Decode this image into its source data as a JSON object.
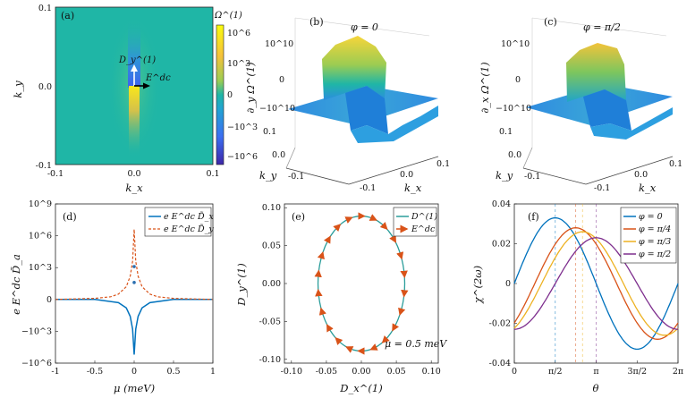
{
  "panels": {
    "a": {
      "label": "(a)",
      "xlabel": "k_x",
      "ylabel": "k_y",
      "colorbar_title": "Ω^(1)",
      "colorbar_ticks": [
        "10^6",
        "10^3",
        "0",
        "−10^3",
        "−10^6"
      ],
      "arrow_labels": [
        "D_y^(1)",
        "E^dc"
      ]
    },
    "b": {
      "label": "(b)",
      "annotation": "φ = 0",
      "zlabel": "∂_y Ω^(1)",
      "zticks": [
        "10^10",
        "0",
        "−10^10"
      ],
      "kyticks": [
        "0.1",
        "0.0",
        "-0.1"
      ],
      "kxticks": [
        "-0.1",
        "0.0",
        "0.1"
      ],
      "xlabel": "k_x",
      "ylabel": "k_y"
    },
    "c": {
      "label": "(c)",
      "annotation": "φ = π/2",
      "zlabel": "∂_x Ω^(1)",
      "zticks": [
        "10^10",
        "0",
        "−10^10"
      ],
      "kyticks": [
        "0.1",
        "0.0",
        "-0.1"
      ],
      "kxticks": [
        "-0.1",
        "0.0",
        "0.1"
      ],
      "xlabel": "k_x",
      "ylabel": "k_y"
    },
    "d": {
      "label": "(d)"
    },
    "e": {
      "label": "(e)",
      "annotation": "μ = 0.5 meV"
    },
    "f": {
      "label": "(f)"
    }
  },
  "colors": {
    "blue": "#0072BD",
    "orange": "#D95319",
    "yellow": "#EDB120",
    "purple": "#7E2F8E",
    "teal": "#2a9d9a"
  },
  "chart_data": [
    {
      "id": "a",
      "type": "heatmap",
      "title": "",
      "x": {
        "label": "k_x",
        "range": [
          -0.1,
          0.1
        ],
        "ticks": [
          -0.1,
          0.0,
          0.1
        ],
        "ticklabels": [
          "-0.1",
          "0.0",
          "0.1"
        ]
      },
      "y": {
        "label": "k_y",
        "range": [
          -0.1,
          0.1
        ],
        "ticks": [
          -0.1,
          0.0,
          0.1
        ],
        "ticklabels": [
          "-0.1",
          "0.0",
          "0.1"
        ]
      },
      "colorbar": {
        "label": "Ω^(1)",
        "scale": "symlog",
        "ticklabels": [
          "10^6",
          "10^3",
          "0",
          "−10^3",
          "−10^6"
        ]
      },
      "description_values": {
        "peak_positive_at": [
          0.0,
          -0.01
        ],
        "peak_negative_at": [
          0.0,
          0.02
        ]
      }
    },
    {
      "id": "d",
      "type": "line",
      "x": {
        "label": "μ (meV)",
        "range": [
          -1,
          1
        ],
        "ticks": [
          -1,
          -0.5,
          0,
          0.5,
          1
        ],
        "ticklabels": [
          "-1",
          "-0.5",
          "0",
          "0.5",
          "1"
        ]
      },
      "y": {
        "label": "e E^dc D̃_a",
        "scale": "symlog",
        "ticks": [
          9,
          6,
          3,
          0,
          -3,
          -6
        ],
        "ticklabels": [
          "10^9",
          "10^6",
          "10^3",
          "0",
          "−10^3",
          "−10^6"
        ]
      },
      "series": [
        {
          "name": "e E^dc D̃_x",
          "style": "solid",
          "color": "#0072BD",
          "x": [
            -1,
            -0.5,
            -0.2,
            -0.1,
            -0.05,
            -0.02,
            0,
            0.02,
            0.05,
            0.1,
            0.2,
            0.5,
            1
          ],
          "y": [
            0,
            0,
            -0.3,
            -0.8,
            -1.6,
            -2.8,
            -5.2,
            -2.8,
            -1.6,
            -0.8,
            -0.3,
            0,
            0
          ]
        },
        {
          "name": "e E^dc D̃_y",
          "style": "dashed",
          "color": "#D95319",
          "x": [
            -1,
            -0.5,
            -0.3,
            -0.2,
            -0.1,
            -0.05,
            -0.02,
            0,
            0.02,
            0.05,
            0.1,
            0.2,
            0.3,
            0.5,
            1
          ],
          "y": [
            0,
            0.1,
            0.25,
            0.5,
            1.2,
            2.2,
            3.6,
            6.6,
            3.6,
            2.2,
            1.2,
            0.5,
            0.25,
            0.1,
            0
          ]
        }
      ],
      "spike_markers": [
        3.1,
        1.6
      ]
    },
    {
      "id": "e",
      "type": "line",
      "x": {
        "label": "D_x^(1)",
        "range": [
          -0.11,
          0.11
        ],
        "ticks": [
          -0.1,
          -0.05,
          0,
          0.05,
          0.1
        ],
        "ticklabels": [
          "-0.10",
          "-0.05",
          "0.00",
          "0.05",
          "0.10"
        ]
      },
      "y": {
        "label": "D_y^(1)",
        "range": [
          -0.105,
          0.105
        ],
        "ticks": [
          -0.1,
          -0.05,
          0,
          0.05,
          0.1
        ],
        "ticklabels": [
          "-0.10",
          "-0.05",
          "0.00",
          "0.05",
          "0.10"
        ]
      },
      "series": [
        {
          "name": "D^(1)",
          "shape": "ellipse",
          "center": [
            0,
            0
          ],
          "semi_axes": [
            0.062,
            0.089
          ],
          "color": "#2a9d9a"
        },
        {
          "name": "E^dc",
          "type": "arrows",
          "count": 22,
          "color": "#D95319"
        }
      ]
    },
    {
      "id": "f",
      "type": "line",
      "x": {
        "label": "θ",
        "range": [
          0,
          6.2832
        ],
        "ticks": [
          0,
          1.5708,
          3.1416,
          4.7124,
          6.2832
        ],
        "ticklabels": [
          "0",
          "π/2",
          "π",
          "3π/2",
          "2π"
        ]
      },
      "y": {
        "label": "χ^(2ω)",
        "range": [
          -0.04,
          0.04
        ],
        "ticks": [
          -0.04,
          -0.02,
          0,
          0.02,
          0.04
        ],
        "ticklabels": [
          "-0.04",
          "-0.02",
          "0",
          "0.02",
          "0.04"
        ]
      },
      "series": [
        {
          "name": "φ = 0",
          "color": "#0072BD",
          "amplitude": 0.033,
          "phase": 0.0,
          "peak_at": 1.5708
        },
        {
          "name": "φ = π/4",
          "color": "#D95319",
          "amplitude": 0.028,
          "phase": 0.7854,
          "peak_at": 2.3562
        },
        {
          "name": "φ = π/3",
          "color": "#EDB120",
          "amplitude": 0.026,
          "phase": 1.0472,
          "peak_at": 2.618
        },
        {
          "name": "φ = π/2",
          "color": "#7E2F8E",
          "amplitude": 0.023,
          "phase": 1.5708,
          "peak_at": 3.1416
        }
      ]
    }
  ]
}
